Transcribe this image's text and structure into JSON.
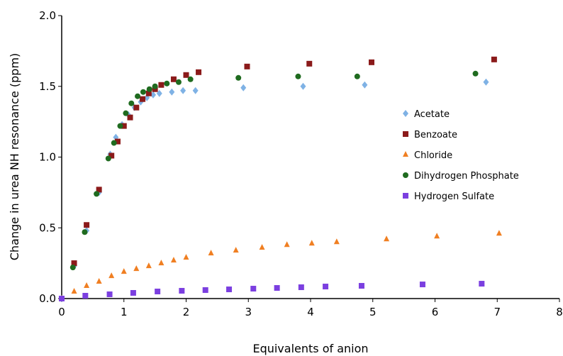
{
  "chart_data": {
    "type": "scatter",
    "xlabel": "Equivalents of anion",
    "ylabel": "Change in urea NH resonance (ppm)",
    "xlim": [
      0,
      8
    ],
    "ylim": [
      0,
      2.0
    ],
    "x_ticks": [
      "0",
      "1",
      "2",
      "3",
      "4",
      "5",
      "6",
      "7",
      "8"
    ],
    "y_ticks": [
      "0.0",
      "0.5",
      "1.0",
      "1.5",
      "2.0"
    ],
    "grid": false,
    "legend_position": "right",
    "series": [
      {
        "name": "Acetate",
        "marker": "diamond",
        "color": "#7fb2e5",
        "points": [
          [
            0,
            0
          ],
          [
            0.2,
            0.23
          ],
          [
            0.4,
            0.48
          ],
          [
            0.6,
            0.75
          ],
          [
            0.78,
            1.02
          ],
          [
            0.87,
            1.14
          ],
          [
            0.97,
            1.23
          ],
          [
            1.07,
            1.3
          ],
          [
            1.17,
            1.35
          ],
          [
            1.27,
            1.39
          ],
          [
            1.37,
            1.42
          ],
          [
            1.47,
            1.44
          ],
          [
            1.57,
            1.45
          ],
          [
            1.77,
            1.46
          ],
          [
            1.95,
            1.47
          ],
          [
            2.15,
            1.47
          ],
          [
            2.92,
            1.49
          ],
          [
            3.88,
            1.5
          ],
          [
            4.87,
            1.51
          ],
          [
            6.82,
            1.53
          ]
        ]
      },
      {
        "name": "Benzoate",
        "marker": "square",
        "color": "#8b1a1a",
        "points": [
          [
            0.2,
            0.25
          ],
          [
            0.4,
            0.52
          ],
          [
            0.6,
            0.77
          ],
          [
            0.8,
            1.01
          ],
          [
            0.9,
            1.11
          ],
          [
            1.0,
            1.22
          ],
          [
            1.1,
            1.28
          ],
          [
            1.2,
            1.35
          ],
          [
            1.3,
            1.41
          ],
          [
            1.4,
            1.45
          ],
          [
            1.5,
            1.48
          ],
          [
            1.6,
            1.51
          ],
          [
            1.8,
            1.55
          ],
          [
            2.0,
            1.58
          ],
          [
            2.2,
            1.6
          ],
          [
            2.98,
            1.64
          ],
          [
            3.98,
            1.66
          ],
          [
            4.98,
            1.67
          ],
          [
            6.95,
            1.69
          ]
        ]
      },
      {
        "name": "Chloride",
        "marker": "triangle",
        "color": "#f07f22",
        "points": [
          [
            0,
            0
          ],
          [
            0.2,
            0.05
          ],
          [
            0.4,
            0.09
          ],
          [
            0.6,
            0.12
          ],
          [
            0.8,
            0.16
          ],
          [
            1.0,
            0.19
          ],
          [
            1.2,
            0.21
          ],
          [
            1.4,
            0.23
          ],
          [
            1.6,
            0.25
          ],
          [
            1.8,
            0.27
          ],
          [
            2.0,
            0.29
          ],
          [
            2.4,
            0.32
          ],
          [
            2.8,
            0.34
          ],
          [
            3.22,
            0.36
          ],
          [
            3.62,
            0.38
          ],
          [
            4.02,
            0.39
          ],
          [
            4.42,
            0.4
          ],
          [
            5.22,
            0.42
          ],
          [
            6.03,
            0.44
          ],
          [
            7.03,
            0.46
          ]
        ]
      },
      {
        "name": "Dihydrogen Phosphate",
        "marker": "circle",
        "color": "#1f6b1f",
        "points": [
          [
            0.18,
            0.22
          ],
          [
            0.37,
            0.47
          ],
          [
            0.56,
            0.74
          ],
          [
            0.75,
            0.99
          ],
          [
            0.84,
            1.1
          ],
          [
            0.94,
            1.22
          ],
          [
            1.03,
            1.31
          ],
          [
            1.12,
            1.38
          ],
          [
            1.22,
            1.43
          ],
          [
            1.31,
            1.46
          ],
          [
            1.41,
            1.48
          ],
          [
            1.5,
            1.5
          ],
          [
            1.69,
            1.52
          ],
          [
            1.88,
            1.53
          ],
          [
            2.07,
            1.55
          ],
          [
            2.84,
            1.56
          ],
          [
            3.8,
            1.57
          ],
          [
            4.75,
            1.57
          ],
          [
            6.65,
            1.59
          ]
        ]
      },
      {
        "name": "Hydrogen Sulfate",
        "marker": "square",
        "color": "#7b3fe0",
        "points": [
          [
            0,
            0
          ],
          [
            0.38,
            0.02
          ],
          [
            0.77,
            0.03
          ],
          [
            1.15,
            0.04
          ],
          [
            1.54,
            0.05
          ],
          [
            1.93,
            0.055
          ],
          [
            2.31,
            0.06
          ],
          [
            2.69,
            0.065
          ],
          [
            3.08,
            0.07
          ],
          [
            3.46,
            0.075
          ],
          [
            3.85,
            0.08
          ],
          [
            4.24,
            0.085
          ],
          [
            4.82,
            0.09
          ],
          [
            5.8,
            0.1
          ],
          [
            6.75,
            0.105
          ]
        ]
      }
    ]
  }
}
